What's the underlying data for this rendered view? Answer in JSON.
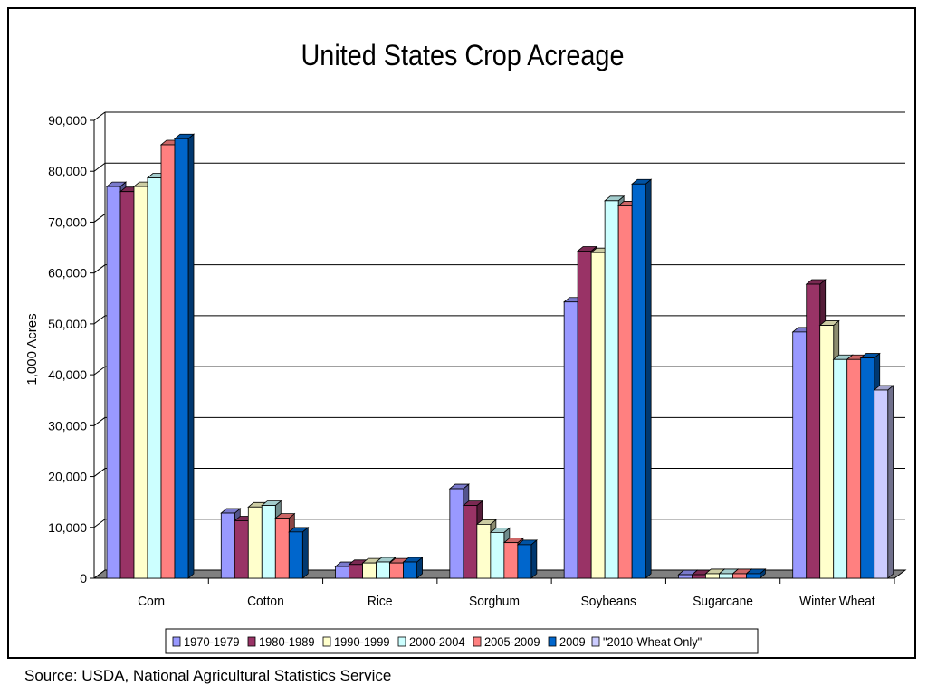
{
  "chart_data": {
    "type": "bar",
    "title": "United States Crop Acreage",
    "xlabel": "",
    "ylabel": "1,000 Acres",
    "ylim": [
      0,
      90000
    ],
    "yticks": [
      0,
      10000,
      20000,
      30000,
      40000,
      50000,
      60000,
      70000,
      80000,
      90000
    ],
    "ytick_labels": [
      "0",
      "10,000",
      "20,000",
      "30,000",
      "40,000",
      "50,000",
      "60,000",
      "70,000",
      "80,000",
      "90,000"
    ],
    "grid": true,
    "legend_position": "bottom",
    "categories": [
      "Corn",
      "Cotton",
      "Rice",
      "Sorghum",
      "Soybeans",
      "Sugarcane",
      "Winter Wheat"
    ],
    "series": [
      {
        "name": "1970-1979",
        "color": "#9999FF",
        "values": [
          77000,
          12800,
          2300,
          17600,
          54300,
          700,
          48400
        ]
      },
      {
        "name": "1980-1989",
        "color": "#993366",
        "values": [
          76000,
          11300,
          2700,
          14300,
          64300,
          700,
          57800
        ]
      },
      {
        "name": "1990-1999",
        "color": "#FFFFCC",
        "values": [
          77000,
          14000,
          3000,
          10600,
          64000,
          900,
          49700
        ]
      },
      {
        "name": "2000-2004",
        "color": "#CCFFFF",
        "values": [
          78700,
          14300,
          3200,
          9000,
          74200,
          900,
          43000
        ]
      },
      {
        "name": "2005-2009",
        "color": "#FF8080",
        "values": [
          85200,
          11800,
          3000,
          7000,
          73200,
          900,
          43000
        ]
      },
      {
        "name": "2009",
        "color": "#0066CC",
        "values": [
          86400,
          9100,
          3200,
          6600,
          77500,
          900,
          43300
        ]
      },
      {
        "name": "\"2010-Wheat Only\"",
        "color": "#CCCCFF",
        "values": [
          null,
          null,
          null,
          null,
          null,
          null,
          37000
        ]
      }
    ]
  },
  "source": "Source: USDA, National Agricultural Statistics Service"
}
